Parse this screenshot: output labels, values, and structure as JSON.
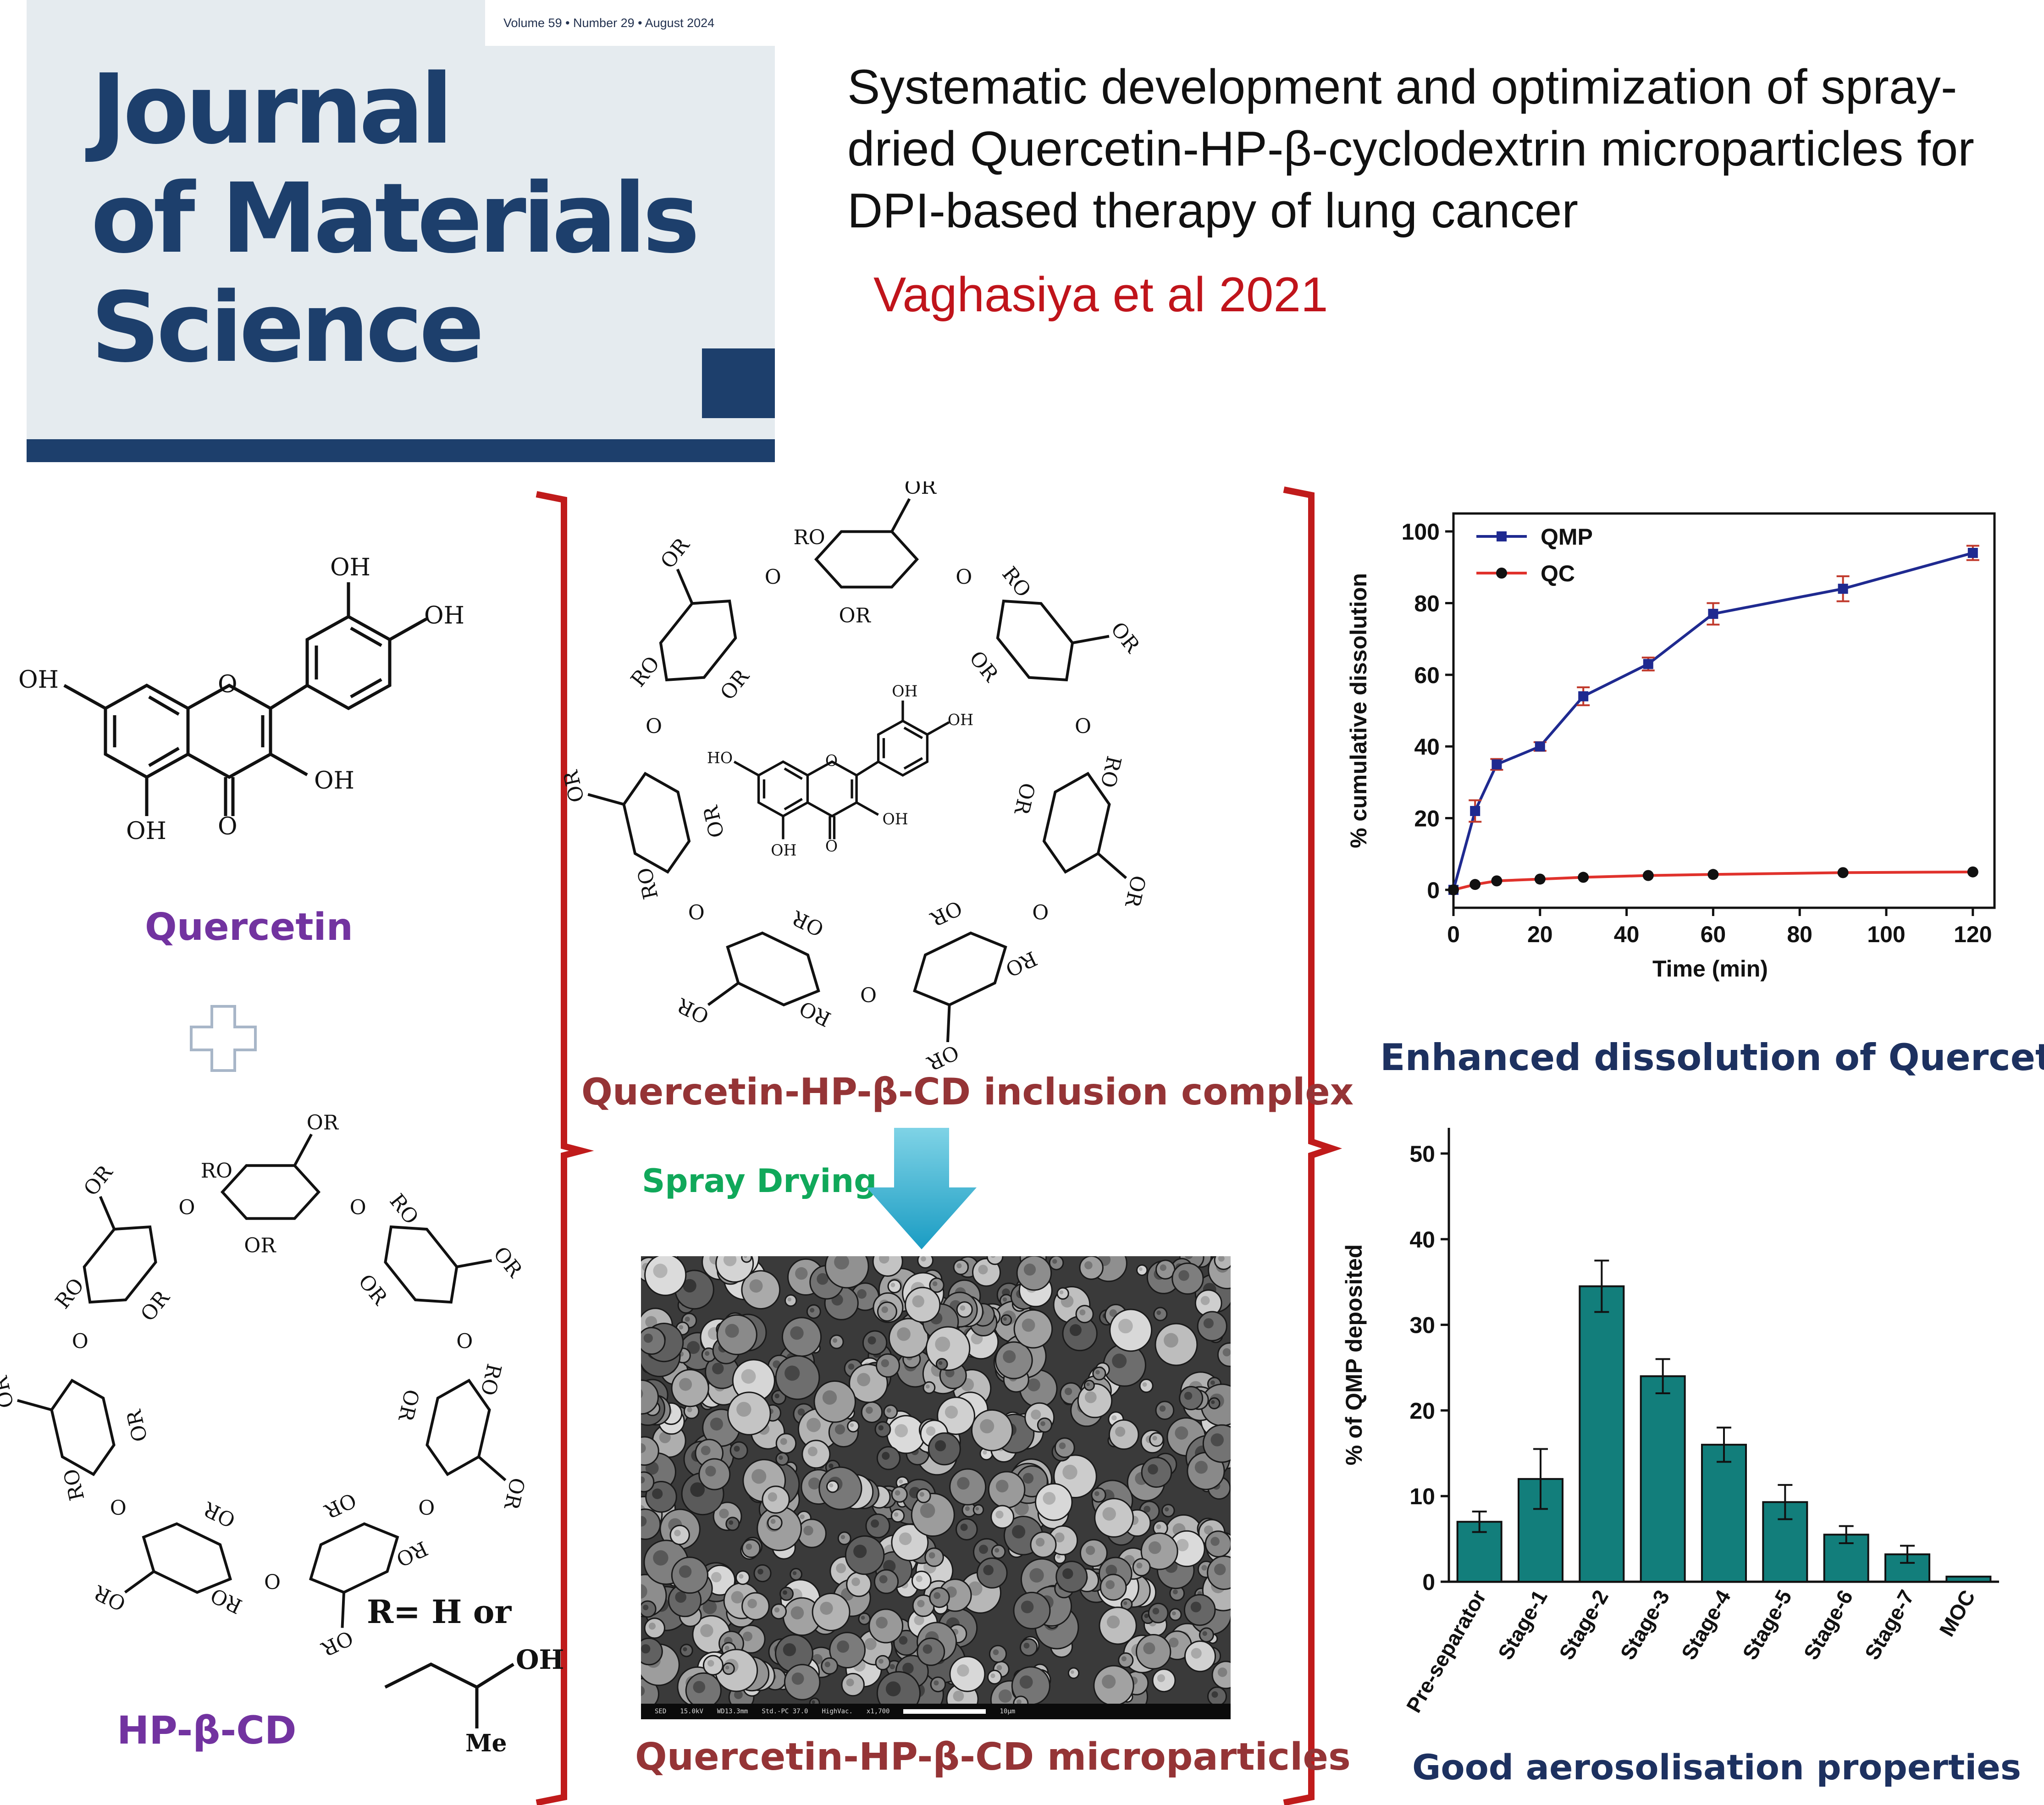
{
  "cover": {
    "issue_line": "Volume 59 • Number 29 • August 2024",
    "title_lines": [
      "Journal",
      "of Materials",
      "Science"
    ],
    "color": "#1d3f6c"
  },
  "paper": {
    "title": "Systematic development and optimization of spray-dried Quercetin-HP-β-cyclodextrin microparticles for DPI-based therapy of lung cancer",
    "author": "Vaghasiya et al 2021"
  },
  "labels": {
    "quercetin": "Quercetin",
    "hpbcd": "HP-β-CD",
    "r_def": "R= H or",
    "oh": "OH",
    "me": "Me",
    "inclusion": "Quercetin-HP-β-CD inclusion complex",
    "spray": "Spray Drying",
    "microparticles": "Quercetin-HP-β-CD microparticles",
    "dissolution_caption": "Enhanced dissolution of Quercetin",
    "aerosol_caption": "Good aerosolisation properties",
    "sem_footer": [
      "SED",
      "15.0kV",
      "WD13.3mm",
      "Std.-PC 37.0",
      "HighVac.",
      "x1,700",
      "10μm"
    ]
  },
  "chart_data": [
    {
      "type": "line",
      "xlabel": "Time (min)",
      "ylabel": "% cumulative dissolution",
      "xlim": [
        0,
        125
      ],
      "ylim": [
        0,
        100
      ],
      "xticks": [
        0,
        20,
        40,
        60,
        80,
        100,
        120
      ],
      "yticks": [
        0,
        20,
        40,
        60,
        80,
        100
      ],
      "legend": "top-left",
      "series": [
        {
          "name": "QMP",
          "color": "#1f2a90",
          "x": [
            0,
            5,
            10,
            20,
            30,
            45,
            60,
            90,
            120
          ],
          "y": [
            0,
            22,
            35,
            40,
            54,
            63,
            77,
            84,
            94
          ],
          "err": [
            0,
            3,
            1.5,
            1.2,
            2.5,
            1.8,
            3,
            3.5,
            2
          ]
        },
        {
          "name": "QC",
          "color": "#e0322c",
          "x": [
            0,
            5,
            10,
            20,
            30,
            45,
            60,
            90,
            120
          ],
          "y": [
            0,
            1.5,
            2.5,
            3,
            3.5,
            4,
            4.3,
            4.8,
            5
          ],
          "err": [
            0,
            0.2,
            0.2,
            0.2,
            0.2,
            0.2,
            0.2,
            0.2,
            0.2
          ]
        }
      ]
    },
    {
      "type": "bar",
      "xlabel": "",
      "ylabel": "% of QMP deposited",
      "ylim": [
        0,
        53
      ],
      "yticks": [
        0,
        10,
        20,
        30,
        40,
        50
      ],
      "bar_color": "#127e7b",
      "categories": [
        "Pre-separator",
        "Stage-1",
        "Stage-2",
        "Stage-3",
        "Stage-4",
        "Stage-5",
        "Stage-6",
        "Stage-7",
        "MOC"
      ],
      "values": [
        7,
        12,
        34.5,
        24,
        16,
        9.3,
        5.5,
        3.2,
        0.6
      ],
      "err": [
        1.2,
        3.5,
        3,
        2,
        2,
        2,
        1,
        1,
        0
      ]
    }
  ]
}
